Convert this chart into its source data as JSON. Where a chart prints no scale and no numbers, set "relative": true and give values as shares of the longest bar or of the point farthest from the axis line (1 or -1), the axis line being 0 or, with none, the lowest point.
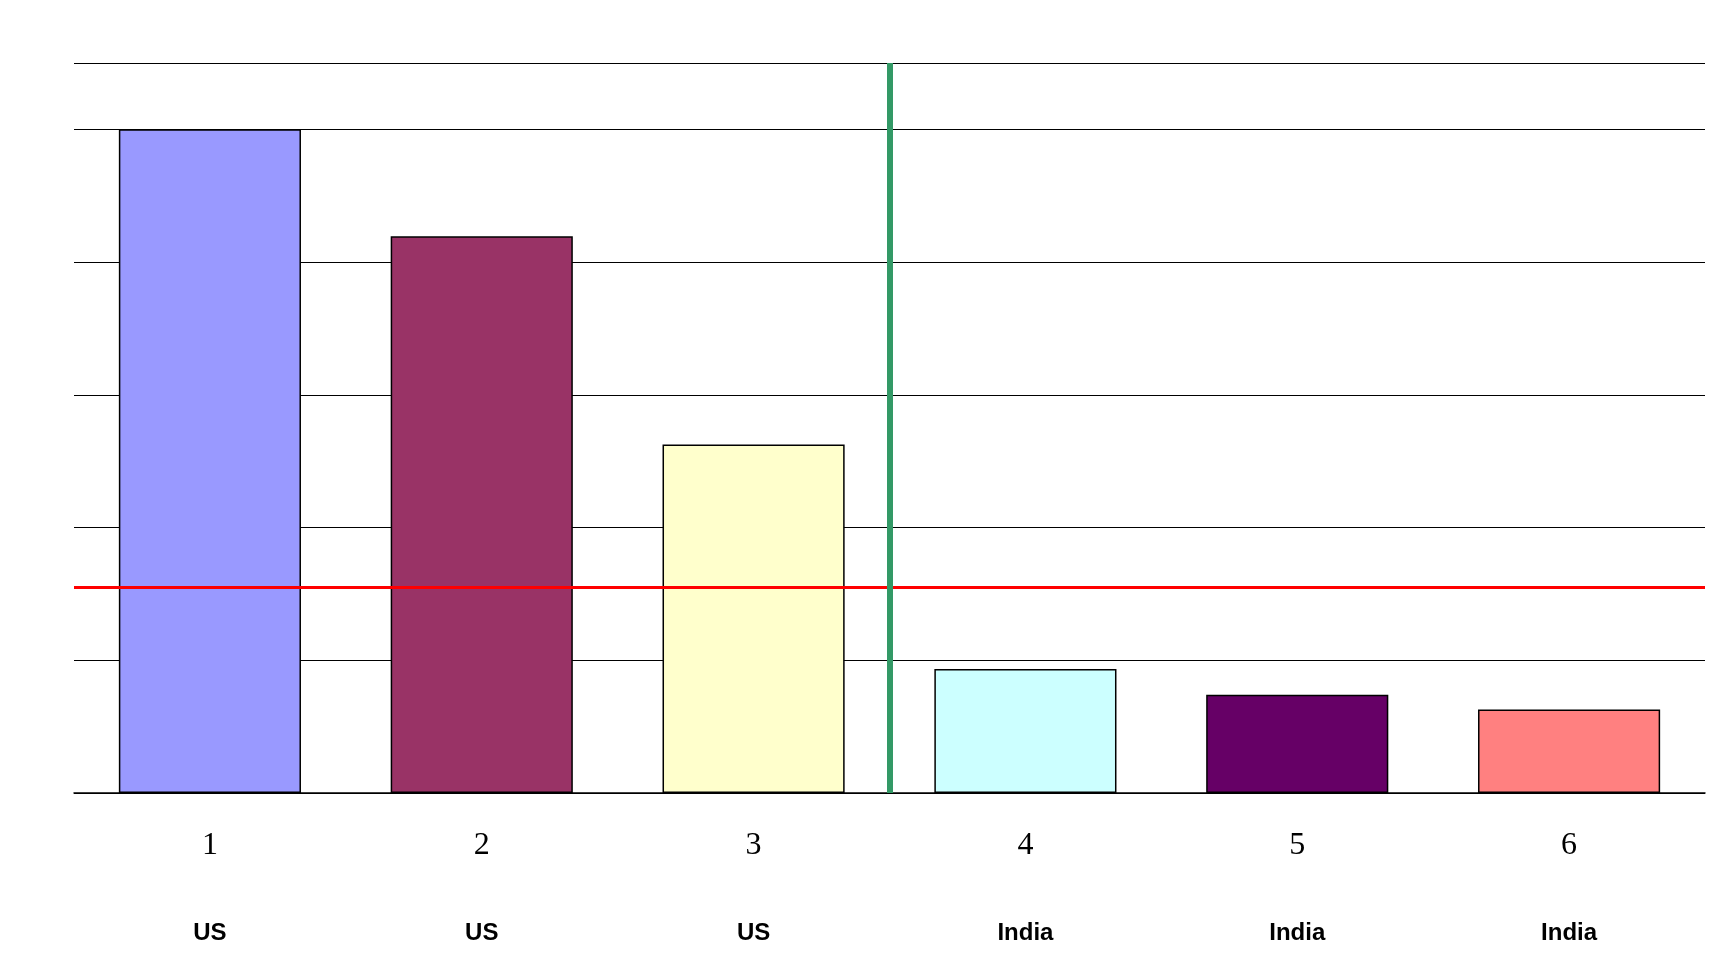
{
  "chart_data": {
    "type": "bar",
    "relative": true,
    "x": [
      1,
      2,
      3,
      4,
      5,
      6
    ],
    "xlim": [
      0.5,
      6.5
    ],
    "xticks": [
      1,
      2,
      3,
      4,
      5,
      6
    ],
    "values": [
      1,
      0.839,
      0.525,
      0.187,
      0.148,
      0.126
    ],
    "colors": [
      "#9999ff",
      "#993366",
      "#ffffcc",
      "#ccffff",
      "#660066",
      "#ff8080"
    ],
    "grid": "y",
    "ref_lines": [
      {
        "axis": "y",
        "value": 0.31,
        "color": "#ff0000"
      },
      {
        "axis": "x",
        "value": 3.5,
        "color": "#339966"
      }
    ],
    "annotations": [
      "US",
      "US",
      "US",
      "India",
      "India",
      "India"
    ]
  }
}
